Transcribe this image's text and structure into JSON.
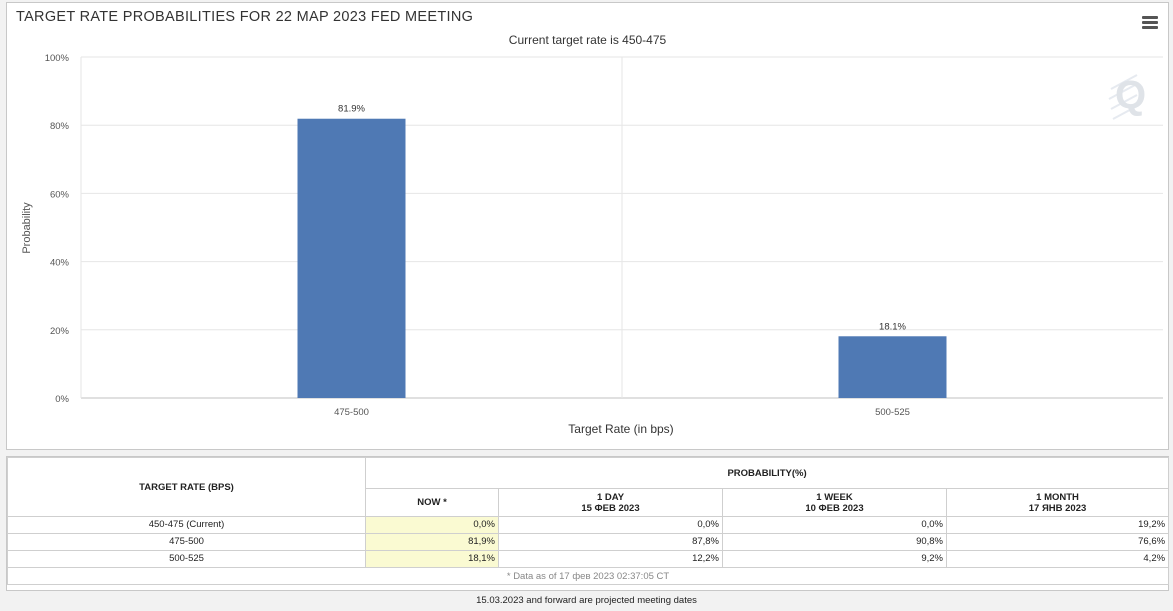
{
  "header": {
    "title": "TARGET RATE PROBABILITIES FOR 22 MAP 2023 FED MEETING",
    "subtitle": "Current target rate is 450-475"
  },
  "watermark": "Q",
  "colors": {
    "bar": "#4f79b4",
    "grid": "#e6e6e6",
    "now_highlight": "#fafad2"
  },
  "chart_data": {
    "type": "bar",
    "categories": [
      "475-500",
      "500-525"
    ],
    "values": [
      81.9,
      18.1
    ],
    "data_labels": [
      "81.9%",
      "18.1%"
    ],
    "title": "TARGET RATE PROBABILITIES FOR 22 MAP 2023 FED MEETING",
    "subtitle": "Current target rate is 450-475",
    "xlabel": "Target Rate (in bps)",
    "ylabel": "Probability",
    "ylim": [
      0,
      100
    ],
    "y_ticks": [
      "0%",
      "20%",
      "40%",
      "60%",
      "80%",
      "100%"
    ],
    "grid": true,
    "legend": "none"
  },
  "table": {
    "rate_header": "TARGET RATE (BPS)",
    "prob_header": "PROBABILITY(%)",
    "columns": [
      {
        "line1": "NOW *",
        "line2": ""
      },
      {
        "line1": "1 DAY",
        "line2": "15 ФЕВ 2023"
      },
      {
        "line1": "1 WEEK",
        "line2": "10 ФЕВ 2023"
      },
      {
        "line1": "1 MONTH",
        "line2": "17 ЯНВ 2023"
      }
    ],
    "rows": [
      {
        "rate": "450-475 (Current)",
        "values": [
          "0,0%",
          "0,0%",
          "0,0%",
          "19,2%"
        ]
      },
      {
        "rate": "475-500",
        "values": [
          "81,9%",
          "87,8%",
          "90,8%",
          "76,6%"
        ]
      },
      {
        "rate": "500-525",
        "values": [
          "18,1%",
          "12,2%",
          "9,2%",
          "4,2%"
        ]
      }
    ],
    "footnote": "* Data as of 17 фев 2023 02:37:05 CT"
  },
  "page_note": "15.03.2023 and forward are projected meeting dates"
}
